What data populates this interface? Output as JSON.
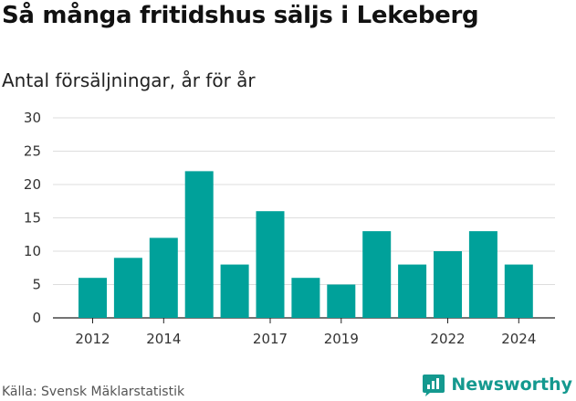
{
  "chart_data": {
    "type": "bar",
    "title": "Så många fritidshus säljs i Lekeberg",
    "subtitle": "Antal försäljningar, år för år",
    "categories": [
      "2012",
      "2013",
      "2014",
      "2015",
      "2016",
      "2017",
      "2018",
      "2019",
      "2020",
      "2021",
      "2022",
      "2023",
      "2024"
    ],
    "values": [
      6,
      9,
      12,
      22,
      8,
      16,
      6,
      5,
      13,
      8,
      10,
      13,
      8
    ],
    "x_tick_labels": [
      "2012",
      "2014",
      "2017",
      "2019",
      "2022",
      "2024"
    ],
    "y_ticks": [
      0,
      5,
      10,
      15,
      20,
      25,
      30
    ],
    "ylim": [
      0,
      30
    ],
    "grid": true,
    "bar_color": "#00a19a"
  },
  "footer": {
    "source": "Källa: Svensk Mäklarstatistik",
    "brand": "Newsworthy",
    "brand_color": "#14998f",
    "brand_icon": "newsworthy-logo-icon"
  }
}
